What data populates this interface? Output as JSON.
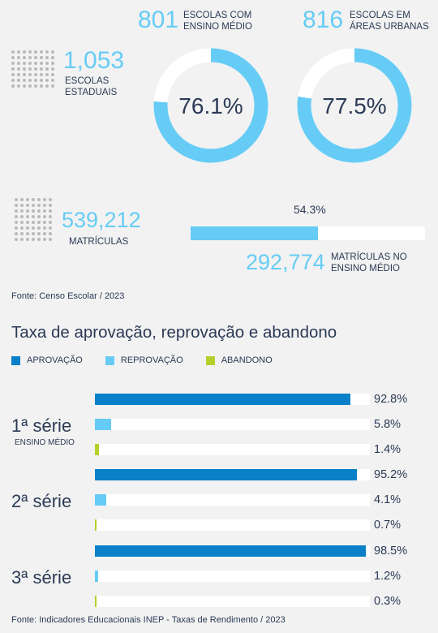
{
  "stats": {
    "schools_total": "1,053",
    "schools_total_label": "ESCOLAS ESTADUAIS",
    "hs_schools": "801",
    "hs_schools_label": "ESCOLAS COM ENSINO MÉDIO",
    "hs_pct": "76.1%",
    "hs_pct_value": 76.1,
    "urban_schools": "816",
    "urban_schools_label": "ESCOLAS EM ÁREAS URBANAS",
    "urban_pct": "77.5%",
    "urban_pct_value": 77.5,
    "enrollments": "539,212",
    "enrollments_label": "MATRÍCULAS",
    "hs_enroll_pct": "54.3%",
    "hs_enroll_pct_value": 54.3,
    "hs_enrollments": "292,774",
    "hs_enrollments_label": "MATRÍCULAS NO ENSINO MÉDIO",
    "source1": "Fonte: Censo Escolar / 2023"
  },
  "colors": {
    "aprovacao": "#0a80c8",
    "reprovacao": "#66ccf5",
    "abandono": "#b5cf2a",
    "donut_track": "#ffffff"
  },
  "chart_data": {
    "type": "bar",
    "title": "Taxa de aprovação, reprovação e abandono",
    "legend": [
      "APROVAÇÃO",
      "REPROVAÇÃO",
      "ABANDONO"
    ],
    "categories": [
      "1ª série",
      "2ª série",
      "3ª série"
    ],
    "category_sub": [
      "ENSINO MÉDIO",
      "",
      ""
    ],
    "series": [
      {
        "name": "APROVAÇÃO",
        "values": [
          92.8,
          95.2,
          98.5
        ],
        "labels": [
          "92.8%",
          "95.2%",
          "98.5%"
        ]
      },
      {
        "name": "REPROVAÇÃO",
        "values": [
          5.8,
          4.1,
          1.2
        ],
        "labels": [
          "5.8%",
          "4.1%",
          "1.2%"
        ]
      },
      {
        "name": "ABANDONO",
        "values": [
          1.4,
          0.7,
          0.3
        ],
        "labels": [
          "1.4%",
          "0.7%",
          "0.3%"
        ]
      }
    ],
    "ylim": [
      0,
      100
    ],
    "source": "Fonte: Indicadores Educacionais INEP - Taxas de Rendimento / 2023"
  }
}
